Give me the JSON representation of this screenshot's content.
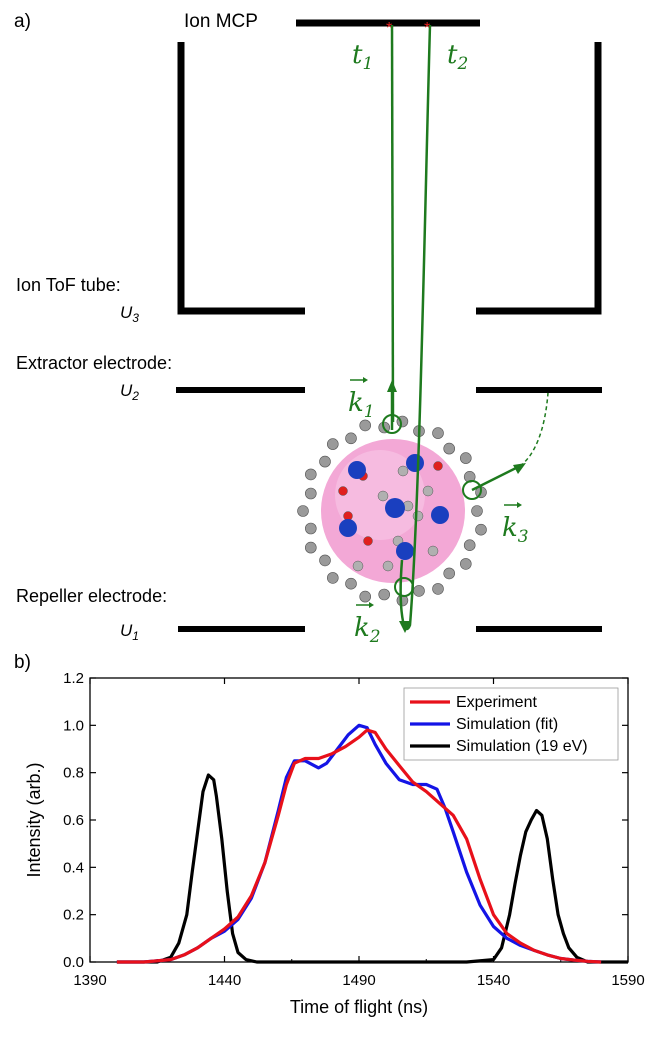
{
  "panel_a": {
    "panel_label": "a)",
    "mcp_label": "Ion MCP",
    "tof_label": "Ion ToF tube:",
    "tof_voltage": "U",
    "tof_voltage_sub": "3",
    "extractor_label": "Extractor electrode:",
    "extractor_voltage": "U",
    "extractor_voltage_sub": "2",
    "repeller_label": "Repeller electrode:",
    "repeller_voltage": "U",
    "repeller_voltage_sub": "1",
    "t1": "t",
    "t1_sub": "1",
    "t2": "t",
    "t2_sub": "2",
    "k1": "k",
    "k1_sub": "1",
    "k2": "k",
    "k2_sub": "2",
    "k3": "k",
    "k3_sub": "3",
    "colors": {
      "trajectory": "#1e7a1e",
      "electrode": "#000000",
      "hit": "#e02020",
      "cluster": "#f2a6d2"
    }
  },
  "panel_b": {
    "panel_label": "b)"
  },
  "chart_data": {
    "type": "line",
    "xlabel": "Time of flight (ns)",
    "ylabel": "Intensity (arb.)",
    "xlim": [
      1390,
      1590
    ],
    "ylim": [
      0,
      1.2
    ],
    "xticks": [
      "1390",
      "1440",
      "1490",
      "1540",
      "1590"
    ],
    "yticks": [
      "0.0",
      "0.2",
      "0.4",
      "0.6",
      "0.8",
      "1.0",
      "1.2"
    ],
    "legend_position": "top-right",
    "series": [
      {
        "name": "Experiment",
        "color": "#e8101a",
        "x": [
          1400,
          1410,
          1420,
          1425,
          1430,
          1435,
          1440,
          1445,
          1450,
          1455,
          1460,
          1463,
          1466,
          1470,
          1475,
          1480,
          1485,
          1490,
          1493,
          1496,
          1500,
          1505,
          1510,
          1515,
          1520,
          1525,
          1530,
          1535,
          1540,
          1545,
          1550,
          1555,
          1560,
          1565,
          1570,
          1575,
          1580
        ],
        "y": [
          0.0,
          0.0,
          0.01,
          0.03,
          0.06,
          0.1,
          0.14,
          0.19,
          0.28,
          0.42,
          0.62,
          0.75,
          0.84,
          0.86,
          0.86,
          0.88,
          0.91,
          0.95,
          0.98,
          0.97,
          0.9,
          0.83,
          0.76,
          0.72,
          0.67,
          0.62,
          0.52,
          0.35,
          0.2,
          0.12,
          0.08,
          0.05,
          0.03,
          0.015,
          0.008,
          0.003,
          0.0
        ]
      },
      {
        "name": "Simulation (fit)",
        "color": "#1414e6",
        "x": [
          1400,
          1410,
          1420,
          1425,
          1430,
          1435,
          1440,
          1445,
          1450,
          1455,
          1460,
          1463,
          1466,
          1470,
          1475,
          1478,
          1482,
          1486,
          1490,
          1493,
          1496,
          1500,
          1505,
          1510,
          1515,
          1519,
          1522,
          1525,
          1530,
          1535,
          1540,
          1545,
          1550,
          1555,
          1560,
          1565,
          1570,
          1575,
          1580
        ],
        "y": [
          0.0,
          0.0,
          0.01,
          0.03,
          0.06,
          0.1,
          0.13,
          0.18,
          0.27,
          0.42,
          0.64,
          0.78,
          0.85,
          0.85,
          0.82,
          0.84,
          0.9,
          0.96,
          1.0,
          0.99,
          0.92,
          0.84,
          0.77,
          0.75,
          0.75,
          0.73,
          0.65,
          0.55,
          0.38,
          0.24,
          0.15,
          0.1,
          0.07,
          0.05,
          0.03,
          0.015,
          0.008,
          0.003,
          0.0
        ]
      },
      {
        "name": "Simulation (19 eV)",
        "color": "#000000",
        "x": [
          1400,
          1415,
          1420,
          1423,
          1426,
          1428,
          1430,
          1432,
          1434,
          1436,
          1437,
          1439,
          1441,
          1443,
          1445,
          1448,
          1452,
          1460,
          1500,
          1530,
          1540,
          1543,
          1546,
          1548,
          1550,
          1552,
          1554,
          1556,
          1558,
          1560,
          1562,
          1564,
          1566,
          1568,
          1571,
          1575,
          1590
        ],
        "y": [
          0.0,
          0.0,
          0.02,
          0.08,
          0.2,
          0.38,
          0.55,
          0.72,
          0.79,
          0.77,
          0.7,
          0.52,
          0.3,
          0.12,
          0.04,
          0.01,
          0.0,
          0.0,
          0.0,
          0.0,
          0.01,
          0.06,
          0.2,
          0.33,
          0.45,
          0.55,
          0.6,
          0.64,
          0.62,
          0.52,
          0.35,
          0.2,
          0.12,
          0.06,
          0.02,
          0.0,
          0.0
        ]
      }
    ]
  }
}
